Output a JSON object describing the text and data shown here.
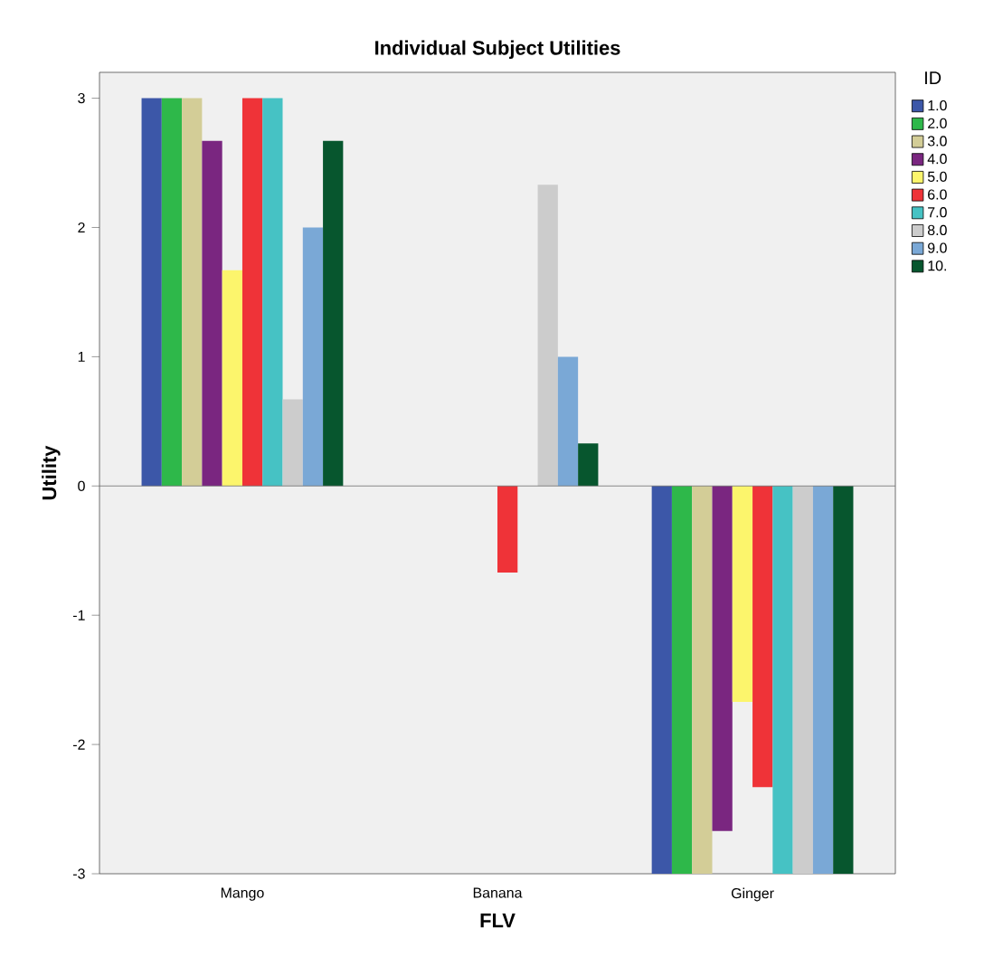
{
  "chart_data": {
    "type": "bar",
    "title": "Individual Subject Utilities",
    "xlabel": "FLV",
    "ylabel": "Utility",
    "legend_title": "ID",
    "legend": "right",
    "categories": [
      "Mango",
      "Banana",
      "Ginger"
    ],
    "ylim": [
      -3,
      3.2
    ],
    "ref_lines": [
      {
        "axis": "y",
        "value": 0,
        "color": "#707070"
      }
    ],
    "yticks": [
      -3,
      -2,
      -1,
      0,
      1,
      2,
      3
    ],
    "grid": false,
    "series": [
      {
        "name": "1.0",
        "color": "#3c57a8",
        "values": [
          3,
          0,
          -3
        ]
      },
      {
        "name": "2.0",
        "color": "#2eb84a",
        "values": [
          3,
          0,
          -3
        ]
      },
      {
        "name": "3.0",
        "color": "#d3cd97",
        "values": [
          3,
          0,
          -3
        ]
      },
      {
        "name": "4.0",
        "color": "#7a2680",
        "values": [
          2.67,
          0,
          -2.67
        ]
      },
      {
        "name": "5.0",
        "color": "#fcf56c",
        "values": [
          1.67,
          0,
          -1.67
        ]
      },
      {
        "name": "6.0",
        "color": "#ef3338",
        "values": [
          3,
          -0.67,
          -2.33
        ]
      },
      {
        "name": "7.0",
        "color": "#46c2c4",
        "values": [
          3,
          0,
          -3
        ]
      },
      {
        "name": "8.0",
        "color": "#cccccc",
        "values": [
          0.67,
          2.33,
          -3
        ]
      },
      {
        "name": "9.0",
        "color": "#7aa8d6",
        "values": [
          2,
          1,
          -3
        ]
      },
      {
        "name": "10.",
        "color": "#07562e",
        "values": [
          2.67,
          0.33,
          -3
        ]
      }
    ]
  }
}
